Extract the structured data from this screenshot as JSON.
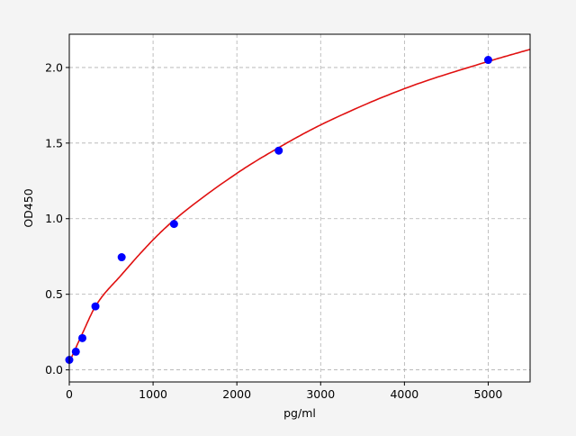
{
  "chart_data": {
    "type": "scatter",
    "title": "",
    "xlabel": "pg/ml",
    "ylabel": "OD450",
    "xlim": [
      0,
      5500
    ],
    "ylim": [
      -0.08,
      2.22
    ],
    "xticks": [
      0,
      1000,
      2000,
      3000,
      4000,
      5000
    ],
    "xtick_labels": [
      "0",
      "1000",
      "2000",
      "3000",
      "4000",
      "5000"
    ],
    "yticks": [
      0.0,
      0.5,
      1.0,
      1.5,
      2.0
    ],
    "ytick_labels": [
      "0.0",
      "0.5",
      "1.0",
      "1.5",
      "2.0"
    ],
    "grid": true,
    "series": [
      {
        "kind": "points",
        "color": "#0000ff",
        "x": [
          0,
          78,
          156,
          312,
          625,
          1250,
          2500,
          5000
        ],
        "y": [
          0.066,
          0.12,
          0.21,
          0.42,
          0.745,
          0.965,
          1.45,
          2.05
        ]
      },
      {
        "kind": "fitted-curve",
        "color": "#e01010",
        "x": [
          0,
          156,
          312,
          625,
          1000,
          1250,
          2000,
          2500,
          3000,
          4000,
          5000,
          5500
        ],
        "y": [
          0.05,
          0.24,
          0.42,
          0.63,
          0.86,
          0.99,
          1.3,
          1.47,
          1.62,
          1.86,
          2.04,
          2.12
        ]
      }
    ]
  }
}
